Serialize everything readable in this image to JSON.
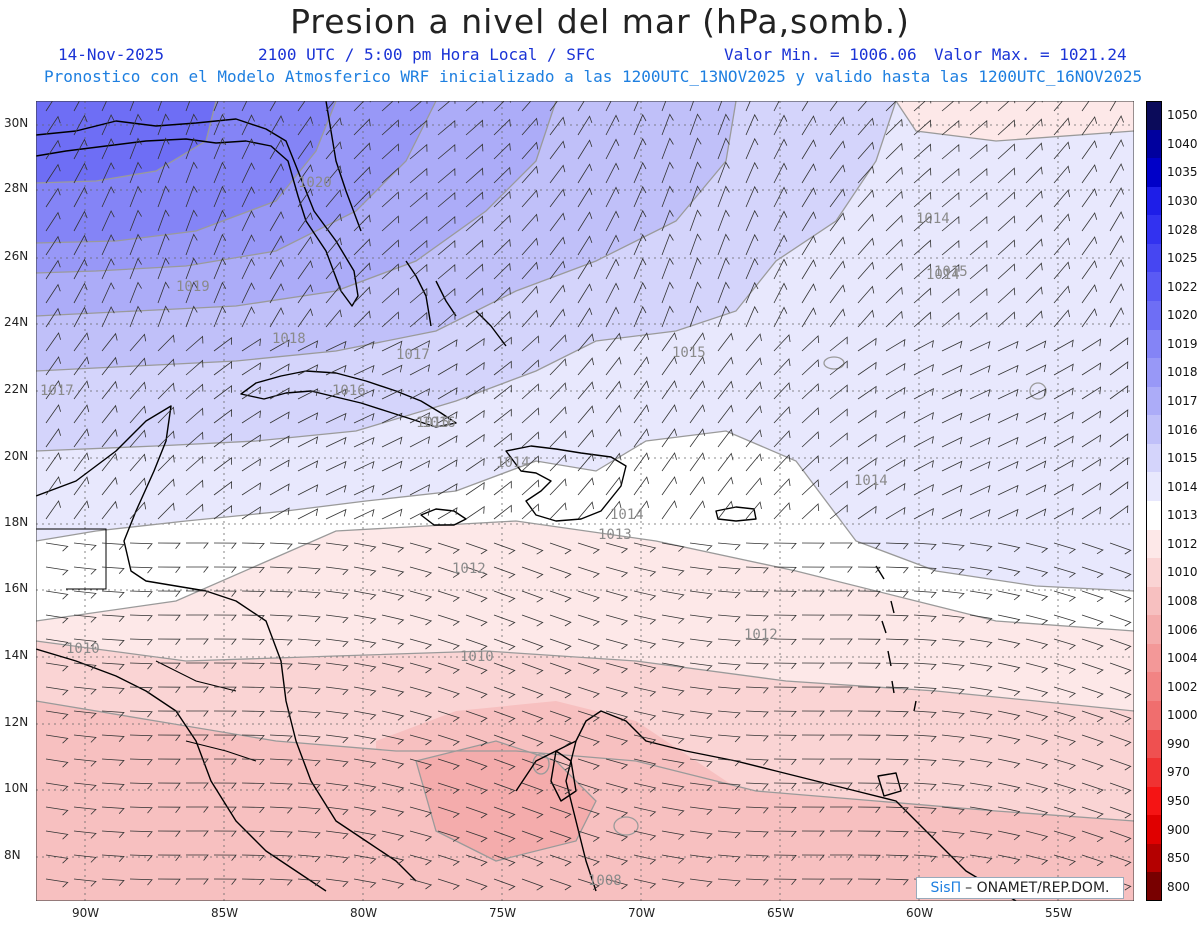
{
  "header": {
    "title": "Presion a nivel del mar (hPa,somb.)",
    "date": "14-Nov-2025",
    "time": "2100 UTC / 5:00 pm Hora Local / SFC",
    "min_label": "Valor Min. = 1006.06",
    "max_label": "Valor Max. = 1021.24",
    "forecast_note": "Pronostico con el Modelo Atmosferico WRF inicializado a las 1200UTC_13NOV2025 y valido hasta las  1200UTC_16NOV2025"
  },
  "axes": {
    "lat_labels": [
      "30N",
      "28N",
      "26N",
      "24N",
      "22N",
      "20N",
      "18N",
      "16N",
      "14N",
      "12N",
      "10N",
      "8N"
    ],
    "lon_labels": [
      "90W",
      "85W",
      "80W",
      "75W",
      "70W",
      "65W",
      "60W",
      "55W"
    ]
  },
  "colorbar": {
    "levels": [
      "1050",
      "1040",
      "1035",
      "1030",
      "1028",
      "1025",
      "1022",
      "1020",
      "1019",
      "1018",
      "1017",
      "1016",
      "1015",
      "1014",
      "1013",
      "1012",
      "1010",
      "1008",
      "1006",
      "1004",
      "1002",
      "1000",
      "990",
      "970",
      "950",
      "900",
      "850",
      "800"
    ],
    "colors": [
      "#0b0b5a",
      "#00009e",
      "#0000c8",
      "#1e1ee8",
      "#3232f0",
      "#4646f2",
      "#5a5af4",
      "#6e6ef5",
      "#8484f6",
      "#9898f7",
      "#acacf8",
      "#c0c0f9",
      "#d4d4fb",
      "#e8e8fd",
      "#ffffff",
      "#fde8e8",
      "#fad4d4",
      "#f7c0c0",
      "#f4acac",
      "#f39898",
      "#f28484",
      "#f06e6e",
      "#ef5050",
      "#f03232",
      "#f51414",
      "#e00000",
      "#b40000",
      "#780000"
    ]
  },
  "contour_labels": [
    "1020",
    "1019",
    "1018",
    "1017",
    "1017",
    "1016",
    "1016",
    "1015",
    "1015",
    "1015",
    "1014",
    "1014",
    "1014",
    "1014",
    "1014",
    "1013",
    "1012",
    "1012",
    "1010",
    "1010",
    "1008"
  ],
  "credit": {
    "brand": "SisΠ",
    "text": "– ONAMET/REP.DOM."
  }
}
